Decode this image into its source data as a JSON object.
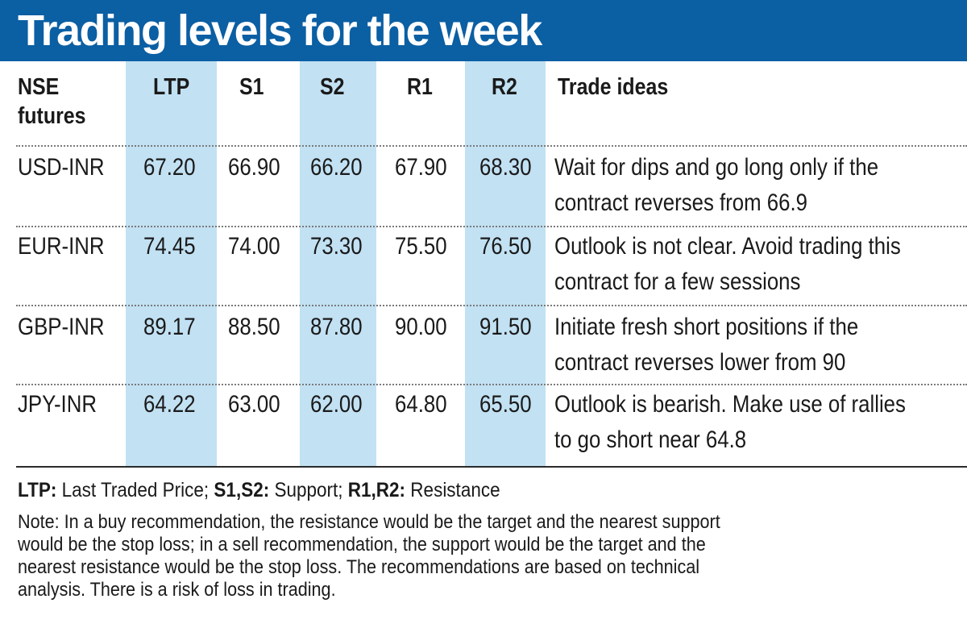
{
  "title": "Trading levels for the week",
  "colors": {
    "title_bar": "#0b5fa3",
    "column_shade": "#c2e1f3",
    "text": "#1a1a1a"
  },
  "headers": {
    "instrument_line1": "NSE",
    "instrument_line2": "futures",
    "ltp": "LTP",
    "s1": "S1",
    "s2": "S2",
    "r1": "R1",
    "r2": "R2",
    "ideas": "Trade ideas"
  },
  "rows": [
    {
      "instrument": "USD-INR",
      "ltp": "67.20",
      "s1": "66.90",
      "s2": "66.20",
      "r1": "67.90",
      "r2": "68.30",
      "idea_line1": "Wait for dips and go long only if the",
      "idea_line2": "contract reverses from 66.9"
    },
    {
      "instrument": "EUR-INR",
      "ltp": "74.45",
      "s1": "74.00",
      "s2": "73.30",
      "r1": "75.50",
      "r2": "76.50",
      "idea_line1": "Outlook is not clear. Avoid trading this",
      "idea_line2": "contract for a few sessions"
    },
    {
      "instrument": "GBP-INR",
      "ltp": "89.17",
      "s1": "88.50",
      "s2": "87.80",
      "r1": "90.00",
      "r2": "91.50",
      "idea_line1": "Initiate fresh short positions if the",
      "idea_line2": "contract reverses lower from 90"
    },
    {
      "instrument": "JPY-INR",
      "ltp": "64.22",
      "s1": "63.00",
      "s2": "62.00",
      "r1": "64.80",
      "r2": "65.50",
      "idea_line1": "Outlook is bearish. Make use of rallies",
      "idea_line2": "to go short near 64.8"
    }
  ],
  "legend": {
    "ltp_key": "LTP:",
    "ltp_text": " Last Traded Price; ",
    "s_key": "S1,S2:",
    "s_text": " Support; ",
    "r_key": "R1,R2:",
    "r_text": " Resistance"
  },
  "note_lines": [
    "Note: In a buy recommendation, the resistance would be the target and the nearest support",
    "would be the stop loss; in a sell recommendation, the support would be the target and the",
    "nearest resistance would be the stop loss. The recommendations are based on technical",
    "analysis. There is a risk of loss in trading."
  ]
}
